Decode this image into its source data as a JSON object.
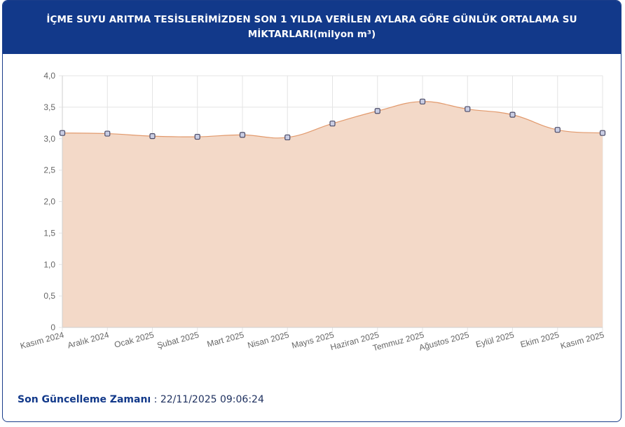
{
  "header": {
    "title": "İÇME SUYU ARITMA TESİSLERİMİZDEN SON 1 YILDA VERİLEN AYLARA GÖRE GÜNLÜK ORTALAMA SU MİKTARLARI(milyon m³)"
  },
  "chart_data": {
    "type": "area",
    "title": "İÇME SUYU ARITMA TESİSLERİMİZDEN SON 1 YILDA VERİLEN AYLARA GÖRE GÜNLÜK ORTALAMA SU MİKTARLARI(milyon m³)",
    "categories": [
      "Kasım 2024",
      "Aralık 2024",
      "Ocak 2025",
      "Şubat 2025",
      "Mart 2025",
      "Nisan 2025",
      "Mayıs 2025",
      "Haziran 2025",
      "Temmuz 2025",
      "Ağustos 2025",
      "Eylül 2025",
      "Ekim 2025",
      "Kasım 2025"
    ],
    "values": [
      3.09,
      3.08,
      3.04,
      3.03,
      3.06,
      3.02,
      3.24,
      3.44,
      3.59,
      3.47,
      3.38,
      3.14,
      3.09
    ],
    "ylim": [
      0,
      4
    ],
    "yticks": [
      "0",
      "0,5",
      "1,0",
      "1,5",
      "2,0",
      "2,5",
      "3,0",
      "3,5",
      "4,0"
    ],
    "grid": true,
    "colors": {
      "fill": "#f3d9c8",
      "line": "#e29a6d",
      "marker_fill": "#c9cde3",
      "marker_stroke": "#4a4a66",
      "grid": "#e4e4e4",
      "axis_text": "#666666"
    }
  },
  "footer": {
    "label": "Son Güncelleme Zamanı",
    "separator": " : ",
    "value": "22/11/2025 09:06:24"
  }
}
